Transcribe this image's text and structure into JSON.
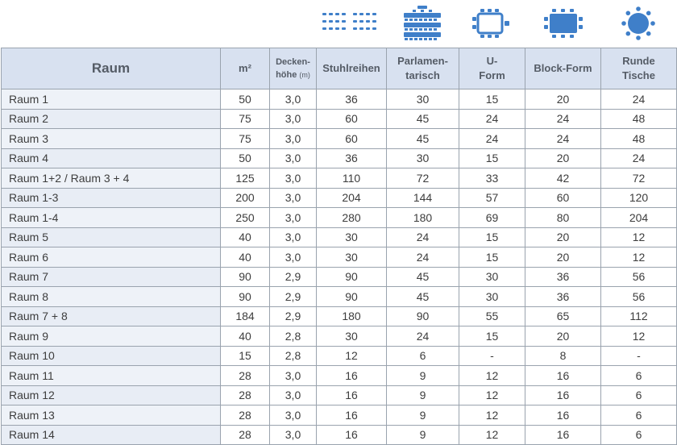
{
  "headers": {
    "raum": "Raum",
    "m2": "m²",
    "decke_line1": "Decken-",
    "decke_line2": "höhe",
    "decke_unit": "(m)",
    "stuhl": "Stuhlreihen",
    "parl_line1": "Parlamen-",
    "parl_line2": "tarisch",
    "u_line1": "U-",
    "u_line2": "Form",
    "block": "Block-Form",
    "runde_line1": "Runde",
    "runde_line2": "Tische"
  },
  "icons": {
    "stuhlreihen": "chair-rows-icon",
    "parlamentarisch": "parliament-icon",
    "u_form": "u-shape-table-icon",
    "block_form": "block-table-icon",
    "runde_tische": "round-table-icon",
    "color": "#3f7fc9"
  },
  "rows": [
    {
      "raum": "Raum 1",
      "m2": "50",
      "decke": "3,0",
      "stuhl": "36",
      "parl": "30",
      "u": "15",
      "block": "20",
      "runde": "24"
    },
    {
      "raum": "Raum 2",
      "m2": "75",
      "decke": "3,0",
      "stuhl": "60",
      "parl": "45",
      "u": "24",
      "block": "24",
      "runde": "48"
    },
    {
      "raum": "Raum 3",
      "m2": "75",
      "decke": "3,0",
      "stuhl": "60",
      "parl": "45",
      "u": "24",
      "block": "24",
      "runde": "48"
    },
    {
      "raum": "Raum 4",
      "m2": "50",
      "decke": "3,0",
      "stuhl": "36",
      "parl": "30",
      "u": "15",
      "block": "20",
      "runde": "24"
    },
    {
      "raum": "Raum 1+2 / Raum 3 + 4",
      "m2": "125",
      "decke": "3,0",
      "stuhl": "110",
      "parl": "72",
      "u": "33",
      "block": "42",
      "runde": "72"
    },
    {
      "raum": "Raum 1-3",
      "m2": "200",
      "decke": "3,0",
      "stuhl": "204",
      "parl": "144",
      "u": "57",
      "block": "60",
      "runde": "120"
    },
    {
      "raum": "Raum 1-4",
      "m2": "250",
      "decke": "3,0",
      "stuhl": "280",
      "parl": "180",
      "u": "69",
      "block": "80",
      "runde": "204"
    },
    {
      "raum": "Raum 5",
      "m2": "40",
      "decke": "3,0",
      "stuhl": "30",
      "parl": "24",
      "u": "15",
      "block": "20",
      "runde": "12"
    },
    {
      "raum": "Raum 6",
      "m2": "40",
      "decke": "3,0",
      "stuhl": "30",
      "parl": "24",
      "u": "15",
      "block": "20",
      "runde": "12"
    },
    {
      "raum": "Raum 7",
      "m2": "90",
      "decke": "2,9",
      "stuhl": "90",
      "parl": "45",
      "u": "30",
      "block": "36",
      "runde": "56"
    },
    {
      "raum": "Raum 8",
      "m2": "90",
      "decke": "2,9",
      "stuhl": "90",
      "parl": "45",
      "u": "30",
      "block": "36",
      "runde": "56"
    },
    {
      "raum": "Raum 7 + 8",
      "m2": "184",
      "decke": "2,9",
      "stuhl": "180",
      "parl": "90",
      "u": "55",
      "block": "65",
      "runde": "112"
    },
    {
      "raum": "Raum 9",
      "m2": "40",
      "decke": "2,8",
      "stuhl": "30",
      "parl": "24",
      "u": "15",
      "block": "20",
      "runde": "12"
    },
    {
      "raum": "Raum 10",
      "m2": "15",
      "decke": "2,8",
      "stuhl": "12",
      "parl": "6",
      "u": "-",
      "block": "8",
      "runde": "-"
    },
    {
      "raum": "Raum 11",
      "m2": "28",
      "decke": "3,0",
      "stuhl": "16",
      "parl": "9",
      "u": "12",
      "block": "16",
      "runde": "6"
    },
    {
      "raum": "Raum 12",
      "m2": "28",
      "decke": "3,0",
      "stuhl": "16",
      "parl": "9",
      "u": "12",
      "block": "16",
      "runde": "6"
    },
    {
      "raum": "Raum 13",
      "m2": "28",
      "decke": "3,0",
      "stuhl": "16",
      "parl": "9",
      "u": "12",
      "block": "16",
      "runde": "6"
    },
    {
      "raum": "Raum 14",
      "m2": "28",
      "decke": "3,0",
      "stuhl": "16",
      "parl": "9",
      "u": "12",
      "block": "16",
      "runde": "6"
    }
  ]
}
